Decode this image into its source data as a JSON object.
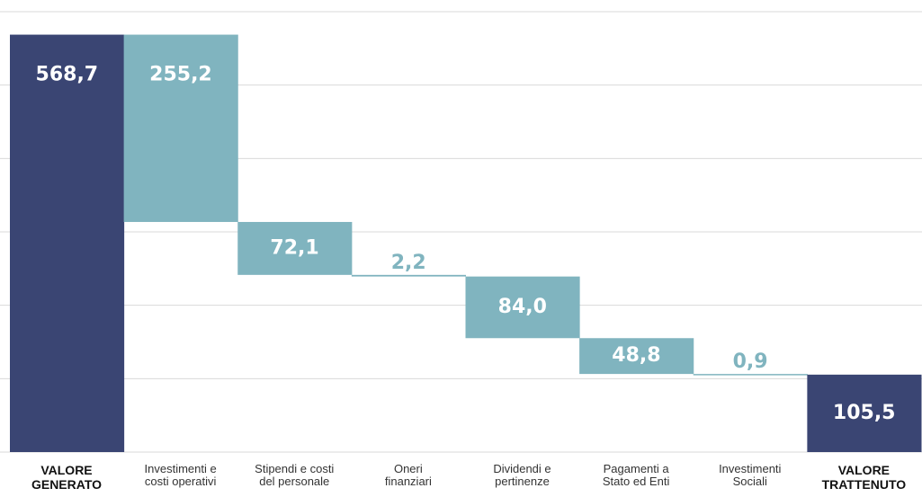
{
  "chart_data": {
    "type": "waterfall",
    "categories": [
      "VALORE\nGENERATO",
      "Investimenti e\ncosti operativi",
      "Stipendi e costi\ndel personale",
      "Oneri\nfinanziari",
      "Dividendi e\npertinenze",
      "Pagamenti a\nStato ed Enti",
      "Investimenti\nSociali",
      "VALORE\nTRATTENUTO"
    ],
    "values": [
      568.7,
      255.2,
      72.1,
      2.2,
      84.0,
      48.8,
      0.9,
      105.5
    ],
    "value_labels": [
      "568,7",
      "255,2",
      "72,1",
      "2,2",
      "84,0",
      "48,8",
      "0,9",
      "105,5"
    ],
    "totals": [
      true,
      false,
      false,
      false,
      false,
      false,
      false,
      true
    ],
    "total_color": "#3a4573",
    "step_color": "#80b4bf",
    "ylim": [
      0,
      600
    ],
    "yticks": [
      0,
      100,
      200,
      300,
      400,
      500,
      600
    ],
    "grid": true
  }
}
